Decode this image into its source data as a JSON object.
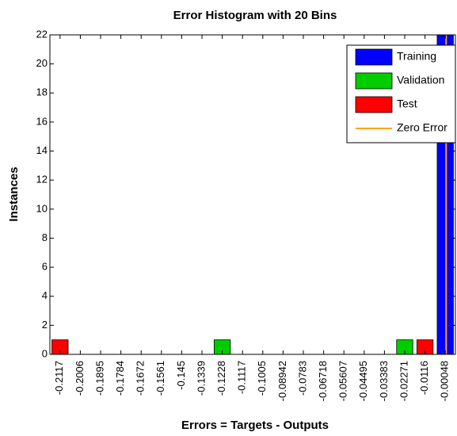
{
  "chart_data": {
    "type": "bar",
    "stacked": true,
    "title": "Error Histogram with 20 Bins",
    "x_label": "Errors = Targets - Outputs",
    "y_label": "Instances",
    "categories": [
      "-0.2117",
      "-0.2006",
      "-0.1895",
      "-0.1784",
      "-0.1672",
      "-0.1561",
      "-0.145",
      "-0.1339",
      "-0.1228",
      "-0.1117",
      "-0.1005",
      "-0.08942",
      "-0.0783",
      "-0.06718",
      "-0.05607",
      "-0.04495",
      "-0.03383",
      "-0.02271",
      "-0.0116",
      "-0.00048"
    ],
    "series": [
      {
        "name": "Training",
        "color": "#0000ff",
        "values": [
          0,
          0,
          0,
          0,
          0,
          0,
          0,
          0,
          0,
          0,
          0,
          0,
          0,
          0,
          0,
          0,
          0,
          0,
          0,
          22
        ]
      },
      {
        "name": "Validation",
        "color": "#00cc00",
        "values": [
          0,
          0,
          0,
          0,
          0,
          0,
          0,
          0,
          1,
          0,
          0,
          0,
          0,
          0,
          0,
          0,
          0,
          1,
          0,
          0
        ]
      },
      {
        "name": "Test",
        "color": "#ff0000",
        "values": [
          1,
          0,
          0,
          0,
          0,
          0,
          0,
          0,
          0,
          0,
          0,
          0,
          0,
          0,
          0,
          0,
          0,
          0,
          1,
          0
        ]
      }
    ],
    "zero_error": {
      "label": "Zero Error",
      "value": 0,
      "color": "#ffa500"
    },
    "ylim": [
      0,
      22
    ],
    "yticks": [
      0,
      2,
      4,
      6,
      8,
      10,
      12,
      14,
      16,
      18,
      20,
      22
    ],
    "legend": "top-right"
  }
}
